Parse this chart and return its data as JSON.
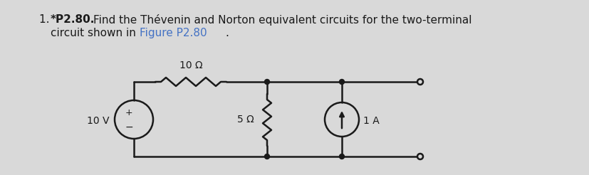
{
  "bg_color": "#d9d9d9",
  "circuit": {
    "vs_label": "10 V",
    "r1_label": "10 Ω",
    "r2_label": "5 Ω",
    "is_label": "1 A",
    "line_color": "#1a1a1a",
    "line_width": 1.8
  }
}
